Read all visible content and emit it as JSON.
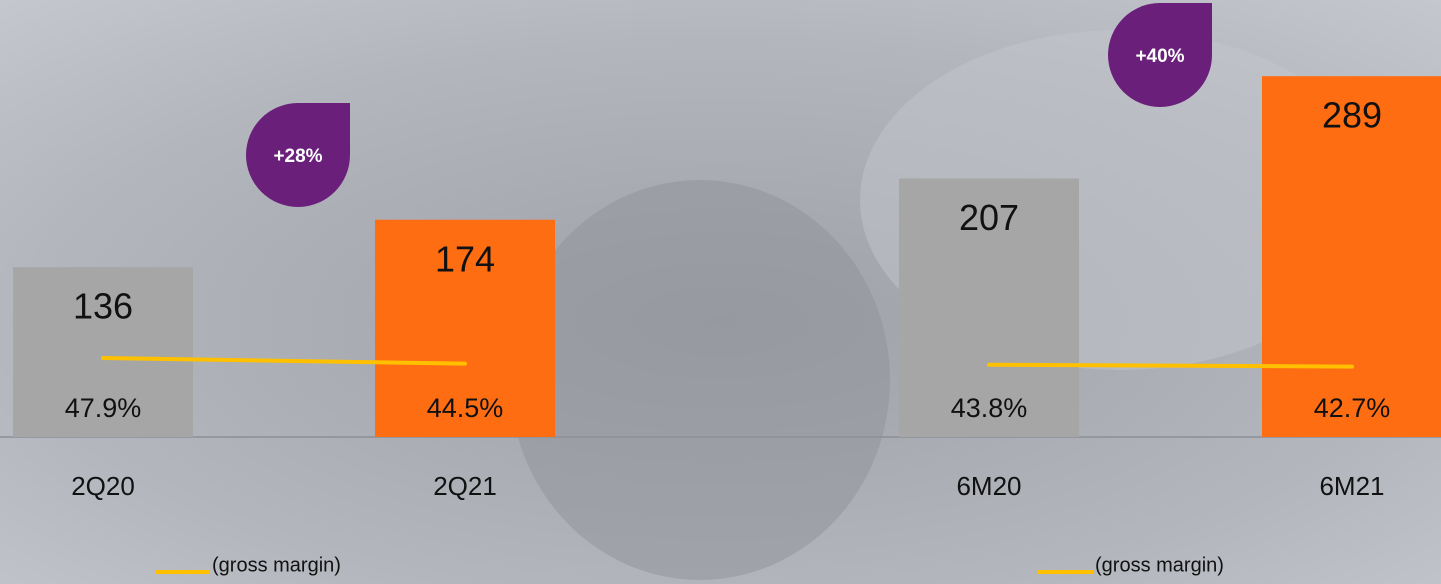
{
  "chart_data": {
    "type": "bar",
    "categories": [
      "2Q20",
      "2Q21",
      "6M20",
      "6M21"
    ],
    "values": [
      136,
      174,
      207,
      289
    ],
    "colors": [
      "#a6a6a6",
      "#ff6d12",
      "#a6a6a6",
      "#ff6d12"
    ],
    "ylim": [
      0,
      350
    ],
    "y2lim": [
      0,
      265
    ],
    "series": [
      {
        "name": "(gross margin)",
        "color": "#ffc000",
        "axis": "y2",
        "values": [
          47.9,
          44.5,
          null,
          null
        ],
        "value_labels": [
          "47.9%",
          "44.5%",
          null,
          null
        ]
      },
      {
        "name": "(gross margin)",
        "color": "#ffc000",
        "axis": "y2",
        "values": [
          null,
          null,
          43.8,
          42.7
        ],
        "value_labels": [
          null,
          null,
          "43.8%",
          "42.7%"
        ]
      }
    ],
    "annotations": [
      "+28%",
      "+40%"
    ],
    "annotation_color": "#6a1f7a"
  }
}
